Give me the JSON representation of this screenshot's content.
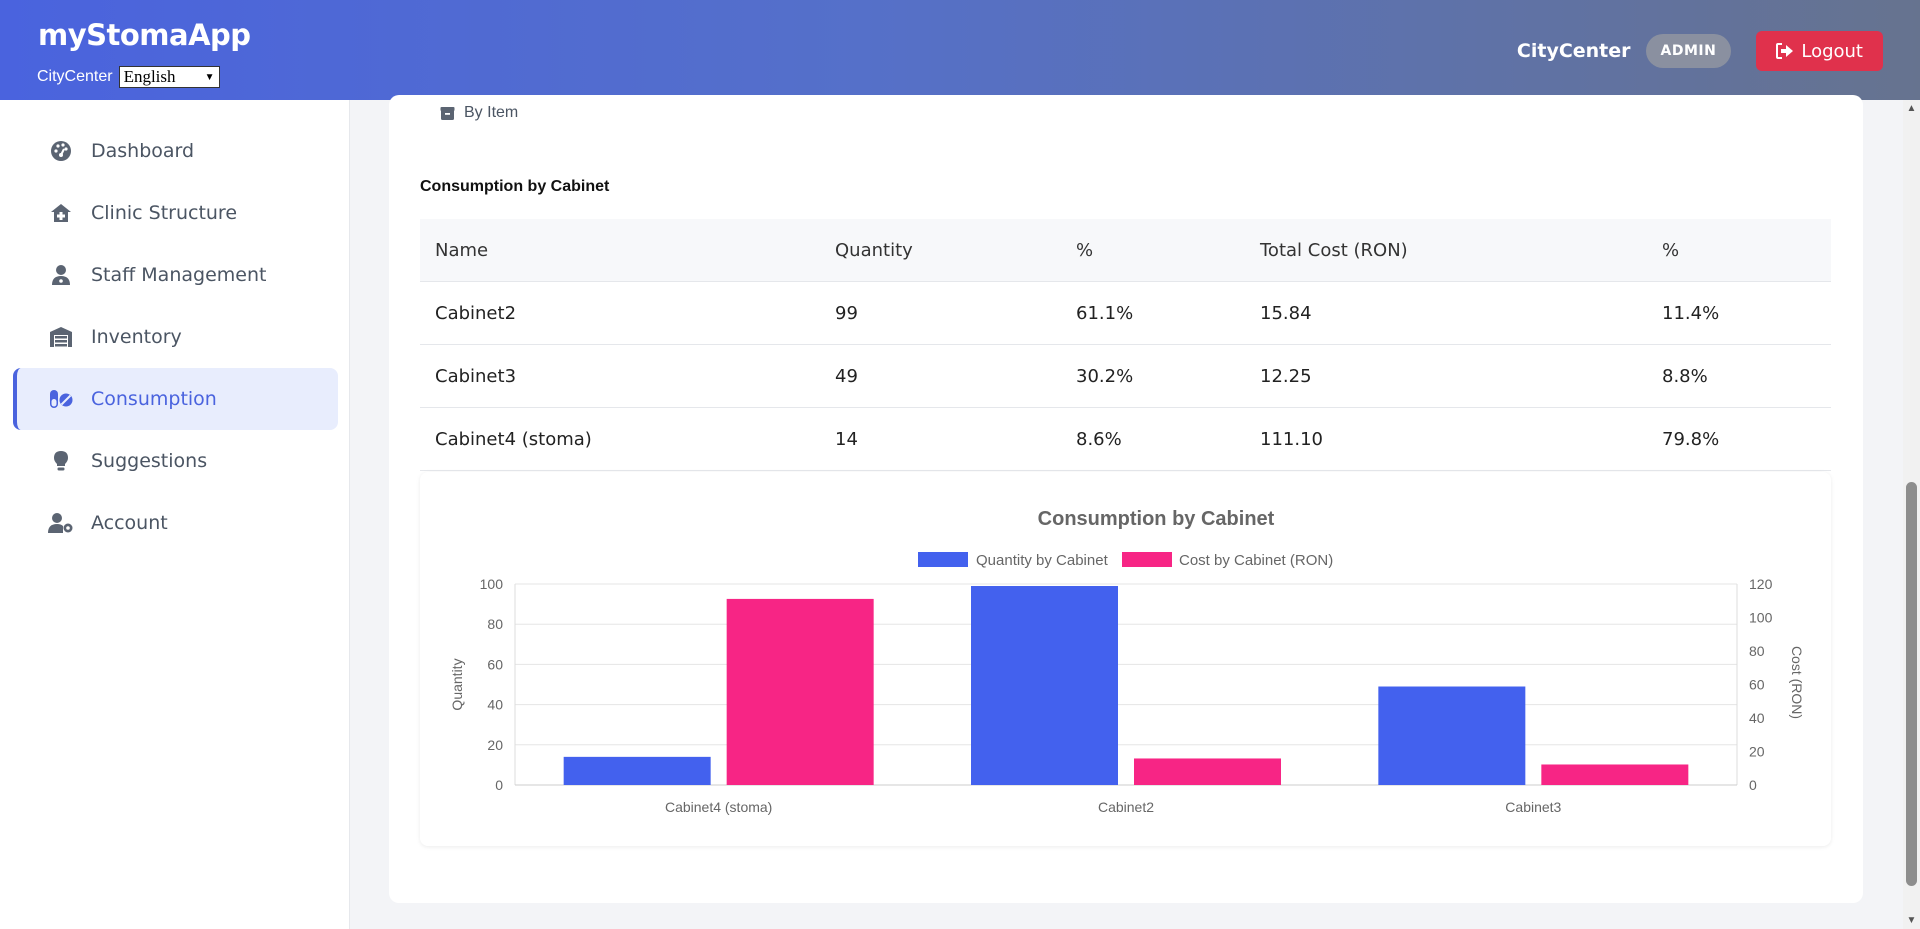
{
  "header": {
    "brand": "myStomaApp",
    "clinic_small": "CityCenter",
    "language": "English",
    "clinic": "CityCenter",
    "role": "ADMIN",
    "logout": "Logout"
  },
  "sidebar": {
    "items": [
      {
        "label": "Dashboard",
        "icon": "dashboard-gauge-icon"
      },
      {
        "label": "Clinic Structure",
        "icon": "clinic-house-plus-icon"
      },
      {
        "label": "Staff Management",
        "icon": "user-doctor-icon"
      },
      {
        "label": "Inventory",
        "icon": "warehouse-icon"
      },
      {
        "label": "Consumption",
        "icon": "pills-icon",
        "active": true
      },
      {
        "label": "Suggestions",
        "icon": "lightbulb-icon"
      },
      {
        "label": "Account",
        "icon": "user-gear-icon"
      }
    ]
  },
  "main": {
    "by_item_label": "By Item",
    "section_title": "Consumption by Cabinet",
    "table": {
      "headers": [
        "Name",
        "Quantity",
        "%",
        "Total Cost (RON)",
        "%"
      ],
      "rows": [
        [
          "Cabinet2",
          "99",
          "61.1%",
          "15.84",
          "11.4%"
        ],
        [
          "Cabinet3",
          "49",
          "30.2%",
          "12.25",
          "8.8%"
        ],
        [
          "Cabinet4 (stoma)",
          "14",
          "8.6%",
          "111.10",
          "79.8%"
        ]
      ]
    }
  },
  "colors": {
    "quantity": "#4361ee",
    "cost": "#f72585",
    "accent": "#4a63de",
    "logout": "#e0314c"
  },
  "chart_data": {
    "type": "bar",
    "title": "Consumption by Cabinet",
    "categories": [
      "Cabinet4 (stoma)",
      "Cabinet2",
      "Cabinet3"
    ],
    "series": [
      {
        "name": "Quantity by Cabinet",
        "axis": "left",
        "values": [
          14,
          99,
          49
        ]
      },
      {
        "name": "Cost by Cabinet (RON)",
        "axis": "right",
        "values": [
          111.1,
          15.84,
          12.25
        ]
      }
    ],
    "ylabel": "Quantity",
    "ylabel_right": "Cost (RON)",
    "ylim": [
      0,
      100
    ],
    "ylim_right": [
      0,
      120
    ],
    "yticks": [
      0,
      20,
      40,
      60,
      80,
      100
    ],
    "yticks_right": [
      0,
      20,
      40,
      60,
      80,
      100,
      120
    ],
    "legend": "top-center",
    "grid": true
  }
}
